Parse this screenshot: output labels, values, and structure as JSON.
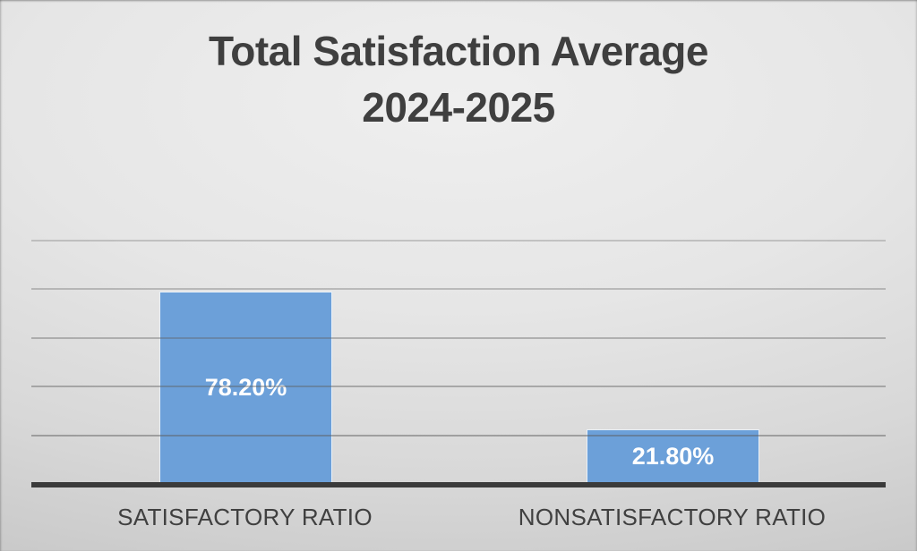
{
  "chart_data": {
    "type": "bar",
    "title": "Total Satisfaction Average",
    "subtitle": "2024-2025",
    "categories": [
      "SATISFACTORY RATIO",
      "NONSATISFACTORY RATIO"
    ],
    "values": [
      78.2,
      21.8
    ],
    "data_labels": [
      "78.20%",
      "21.80%"
    ],
    "ylabel": "",
    "xlabel": "",
    "ylim": [
      0,
      100
    ],
    "gridline_step": 20,
    "grid": "on",
    "legend": "none",
    "data_label_position": "center",
    "colors": {
      "bar_fill": "#6CA0D9",
      "bar_border": "#e9f1f9",
      "data_label": "#ffffff",
      "axis_line": "#3b3b3b",
      "title_text": "#3f3f3f",
      "category_text": "#404040",
      "gridline_base": "#5f5f5f"
    }
  }
}
